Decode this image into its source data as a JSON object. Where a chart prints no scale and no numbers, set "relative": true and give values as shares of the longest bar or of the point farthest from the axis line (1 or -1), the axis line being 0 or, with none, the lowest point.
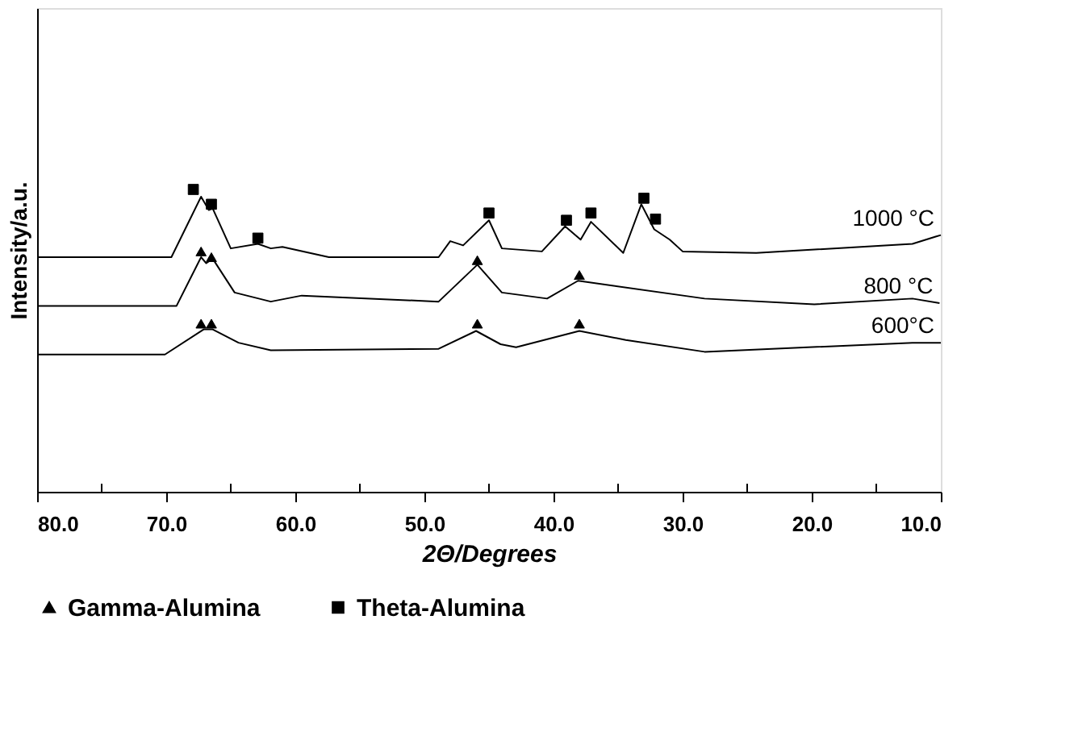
{
  "chart_data": {
    "type": "line",
    "relative": true,
    "xlabel": "2Θ/Degrees",
    "ylabel": "Intensity/a.u.",
    "xlim": [
      80,
      10
    ],
    "xticks": [
      {
        "value": 80,
        "label": "80.0"
      },
      {
        "value": 75,
        "label": null
      },
      {
        "value": 70,
        "label": "70.0"
      },
      {
        "value": 65,
        "label": null
      },
      {
        "value": 60,
        "label": "60.0"
      },
      {
        "value": 55,
        "label": null
      },
      {
        "value": 50,
        "label": "50.0"
      },
      {
        "value": 45,
        "label": null
      },
      {
        "value": 40,
        "label": "40.0"
      },
      {
        "value": 35,
        "label": null
      },
      {
        "value": 30,
        "label": "30.0"
      },
      {
        "value": 25,
        "label": null
      },
      {
        "value": 20,
        "label": "20.0"
      },
      {
        "value": 15,
        "label": null
      },
      {
        "value": 10,
        "label": "10.0"
      }
    ],
    "legend": "bottom",
    "grid": false,
    "series": [
      {
        "name": "1000 °C",
        "type": "line",
        "marker": "none",
        "color": "#000000",
        "x": [
          80,
          69.6,
          67.3,
          66.7,
          66.4,
          65.0,
          62.9,
          61.9,
          61.0,
          57.4,
          48.9,
          48.0,
          47.0,
          45.0,
          44.0,
          40.9,
          39.1,
          37.9,
          37.1,
          34.6,
          33.2,
          32.2,
          31.0,
          30.0,
          24.3,
          12.2,
          10.4,
          10
        ],
        "values": [
          0.776,
          0.776,
          0.976,
          0.932,
          0.937,
          0.805,
          0.82,
          0.805,
          0.81,
          0.776,
          0.776,
          0.829,
          0.815,
          0.898,
          0.805,
          0.795,
          0.878,
          0.834,
          0.893,
          0.79,
          0.951,
          0.868,
          0.834,
          0.795,
          0.79,
          0.82,
          0.844,
          0.849
        ]
      },
      {
        "name": "800 °C",
        "type": "line",
        "marker": "none",
        "color": "#000000",
        "x": [
          80,
          69.2,
          67.3,
          66.9,
          66.4,
          64.7,
          61.9,
          59.5,
          48.9,
          45.9,
          44.0,
          40.5,
          38.1,
          28.3,
          19.8,
          12.2,
          10.1
        ],
        "values": [
          0.615,
          0.615,
          0.776,
          0.756,
          0.771,
          0.659,
          0.629,
          0.649,
          0.629,
          0.751,
          0.659,
          0.639,
          0.698,
          0.639,
          0.62,
          0.639,
          0.624
        ]
      },
      {
        "name": "600°C",
        "type": "line",
        "marker": "none",
        "color": "#000000",
        "x": [
          80,
          70.1,
          67.1,
          66.4,
          64.4,
          61.9,
          48.9,
          46.0,
          44.1,
          42.9,
          38.0,
          34.4,
          28.3,
          12.2,
          10
        ],
        "values": [
          0.454,
          0.454,
          0.537,
          0.537,
          0.493,
          0.468,
          0.473,
          0.532,
          0.488,
          0.478,
          0.532,
          0.502,
          0.463,
          0.493,
          0.493
        ]
      },
      {
        "name": "Gamma-Alumina",
        "type": "scatter",
        "marker": "triangle",
        "color": "#000000",
        "x": [
          67.3,
          66.5,
          45.9,
          38.0,
          67.3,
          66.5,
          45.9,
          38.0
        ],
        "values": [
          0.795,
          0.776,
          0.766,
          0.717,
          0.556,
          0.556,
          0.556,
          0.556
        ]
      },
      {
        "name": "Theta-Alumina",
        "type": "scatter",
        "marker": "square",
        "color": "#000000",
        "x": [
          67.9,
          66.5,
          62.9,
          45.0,
          39.0,
          37.1,
          33.0,
          32.1
        ],
        "values": [
          1.0,
          0.951,
          0.839,
          0.922,
          0.898,
          0.922,
          0.971,
          0.902
        ]
      }
    ]
  }
}
